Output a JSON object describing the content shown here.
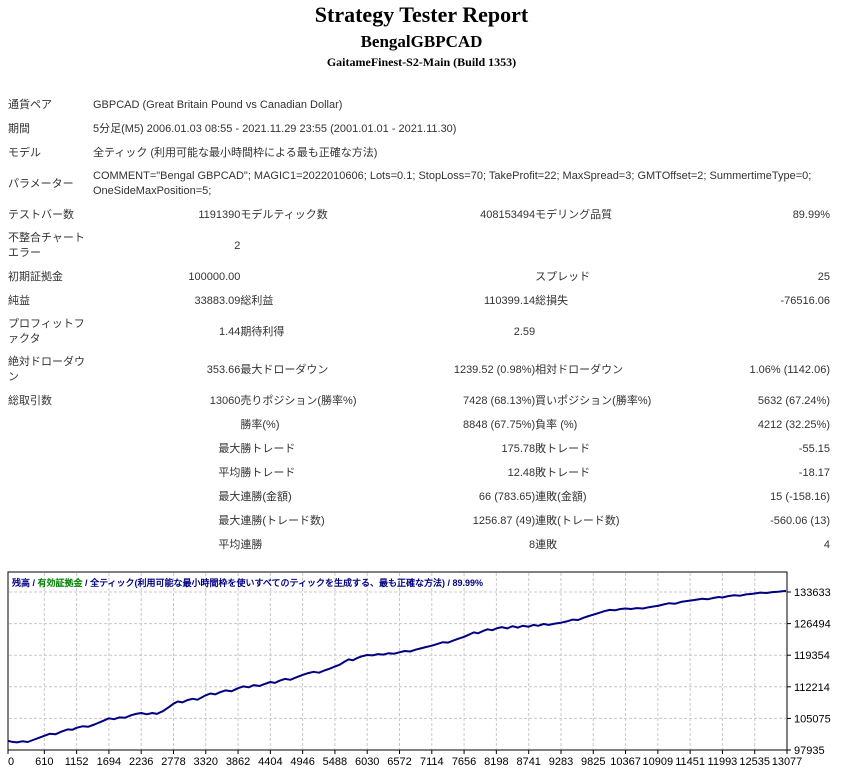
{
  "header": {
    "title": "Strategy Tester Report",
    "subtitle": "BengalGBPCAD",
    "build": "GaitameFinest-S2-Main (Build 1353)"
  },
  "table": {
    "rows": [
      {
        "l1": "通貨ペア",
        "v1": "",
        "span": "GBPCAD (Great Britain Pound vs Canadian Dollar)"
      },
      {
        "l1": "期間",
        "v1": "",
        "span": "5分足(M5) 2006.01.03 08:55 - 2021.11.29 23:55 (2001.01.01 - 2021.11.30)"
      },
      {
        "l1": "モデル",
        "v1": "",
        "span": "全ティック (利用可能な最小時間枠による最も正確な方法)"
      },
      {
        "l1": "パラメーター",
        "v1": "",
        "span": "COMMENT=\"Bengal GBPCAD\"; MAGIC1=2022010606; Lots=0.1; StopLoss=70; TakeProfit=22; MaxSpread=3; GMTOffset=2; SummertimeType=0; OneSideMaxPosition=5;"
      },
      {
        "l1": "テストバー数",
        "v1": "1191390",
        "l2": "モデルティック数",
        "v2": "408153494",
        "l3": "モデリング品質",
        "v3": "89.99%"
      },
      {
        "l1": "不整合チャートエラー",
        "v1": "2",
        "l2": "",
        "v2": "",
        "l3": "",
        "v3": ""
      },
      {
        "l1": "初期証拠金",
        "v1": "100000.00",
        "l2": "",
        "v2": "",
        "l3": "スプレッド",
        "v3": "25"
      },
      {
        "l1": "純益",
        "v1": "33883.09",
        "l2": "総利益",
        "v2": "110399.14",
        "l3": "総損失",
        "v3": "-76516.06"
      },
      {
        "l1": "プロフィットファクタ",
        "v1": "1.44",
        "l2": "期待利得",
        "v2": "2.59",
        "l3": "",
        "v3": ""
      },
      {
        "l1": "絶対ドローダウン",
        "v1": "353.66",
        "l2": "最大ドローダウン",
        "v2": "1239.52 (0.98%)",
        "l3": "相対ドローダウン",
        "v3": "1.06% (1142.06)"
      },
      {
        "l1": "総取引数",
        "v1": "13060",
        "l2": "売りポジション(勝率%)",
        "v2": "7428 (68.13%)",
        "l3": "買いポジション(勝率%)",
        "v3": "5632 (67.24%)"
      },
      {
        "l1": "",
        "v1": "",
        "l2": "勝率(%)",
        "v2": "8848 (67.75%)",
        "l3": "負率 (%)",
        "v3": "4212 (32.25%)"
      },
      {
        "l1": "",
        "v1": "最大",
        "l2": "勝トレード",
        "v2": "175.78",
        "l3": "敗トレード",
        "v3": "-55.15"
      },
      {
        "l1": "",
        "v1": "平均",
        "l2": "勝トレード",
        "v2": "12.48",
        "l3": "敗トレード",
        "v3": "-18.17"
      },
      {
        "l1": "",
        "v1": "最大",
        "l2": "連勝(金額)",
        "v2": "66 (783.65)",
        "l3": "連敗(金額)",
        "v3": "15 (-158.16)"
      },
      {
        "l1": "",
        "v1": "最大",
        "l2": "連勝(トレード数)",
        "v2": "1256.87 (49)",
        "l3": "連敗(トレード数)",
        "v3": "-560.06 (13)"
      },
      {
        "l1": "",
        "v1": "平均",
        "l2": "連勝",
        "v2": "8",
        "l3": "連敗",
        "v3": "4"
      }
    ]
  },
  "chart_data": {
    "type": "line",
    "legend": {
      "balance": "残高",
      "separator": " / ",
      "equity": "有効証拠金",
      "rest": "全ティック(利用可能な最小時間枠を使いすべてのティックを生成する、最も正確な方法) / 89.99%"
    },
    "colors": {
      "balance_line": "#000080",
      "equity_text": "#008000",
      "grid": "#c8c8c8",
      "border": "#000000"
    },
    "grid": "dashed",
    "legend_position": "top-left-inside",
    "x_ticks": [
      0,
      610,
      1152,
      1694,
      2236,
      2778,
      3320,
      3862,
      4404,
      4946,
      5488,
      6030,
      6572,
      7114,
      7656,
      8198,
      8741,
      9283,
      9825,
      10367,
      10909,
      11451,
      11993,
      12535,
      13077
    ],
    "y_ticks": [
      97935,
      105075,
      112214,
      119354,
      126494,
      133633
    ],
    "xlabel": "",
    "ylabel": "",
    "series": [
      {
        "name": "残高",
        "points": [
          [
            0,
            100000
          ],
          [
            60,
            99800
          ],
          [
            150,
            99646
          ],
          [
            240,
            99900
          ],
          [
            330,
            99750
          ],
          [
            420,
            100200
          ],
          [
            520,
            100700
          ],
          [
            610,
            101150
          ],
          [
            700,
            101600
          ],
          [
            800,
            101500
          ],
          [
            900,
            102100
          ],
          [
            1000,
            102600
          ],
          [
            1080,
            102500
          ],
          [
            1152,
            102950
          ],
          [
            1250,
            103300
          ],
          [
            1350,
            103200
          ],
          [
            1450,
            103700
          ],
          [
            1560,
            104300
          ],
          [
            1694,
            105100
          ],
          [
            1780,
            104900
          ],
          [
            1870,
            105300
          ],
          [
            1960,
            105200
          ],
          [
            2070,
            105800
          ],
          [
            2150,
            106100
          ],
          [
            2236,
            106300
          ],
          [
            2330,
            106000
          ],
          [
            2420,
            106300
          ],
          [
            2500,
            106100
          ],
          [
            2600,
            106700
          ],
          [
            2700,
            107600
          ],
          [
            2778,
            108400
          ],
          [
            2850,
            108900
          ],
          [
            2930,
            108700
          ],
          [
            3010,
            109200
          ],
          [
            3100,
            109500
          ],
          [
            3180,
            109300
          ],
          [
            3250,
            109800
          ],
          [
            3320,
            110300
          ],
          [
            3400,
            110700
          ],
          [
            3480,
            110500
          ],
          [
            3560,
            111000
          ],
          [
            3650,
            111400
          ],
          [
            3750,
            111200
          ],
          [
            3862,
            111900
          ],
          [
            3950,
            112300
          ],
          [
            4040,
            112100
          ],
          [
            4130,
            112600
          ],
          [
            4220,
            112400
          ],
          [
            4300,
            112800
          ],
          [
            4404,
            113300
          ],
          [
            4480,
            113100
          ],
          [
            4560,
            113600
          ],
          [
            4650,
            114000
          ],
          [
            4740,
            113800
          ],
          [
            4830,
            114300
          ],
          [
            4946,
            114900
          ],
          [
            5040,
            115300
          ],
          [
            5130,
            115600
          ],
          [
            5220,
            115400
          ],
          [
            5310,
            115900
          ],
          [
            5400,
            116300
          ],
          [
            5488,
            116800
          ],
          [
            5570,
            117200
          ],
          [
            5650,
            117900
          ],
          [
            5720,
            118400
          ],
          [
            5790,
            118200
          ],
          [
            5860,
            118700
          ],
          [
            5940,
            119100
          ],
          [
            6030,
            119400
          ],
          [
            6120,
            119300
          ],
          [
            6210,
            119600
          ],
          [
            6300,
            119500
          ],
          [
            6390,
            119800
          ],
          [
            6480,
            119700
          ],
          [
            6572,
            120000
          ],
          [
            6660,
            120300
          ],
          [
            6750,
            120200
          ],
          [
            6840,
            120600
          ],
          [
            6930,
            120900
          ],
          [
            7020,
            121200
          ],
          [
            7114,
            121500
          ],
          [
            7210,
            121900
          ],
          [
            7300,
            122300
          ],
          [
            7390,
            122200
          ],
          [
            7480,
            122700
          ],
          [
            7570,
            123100
          ],
          [
            7656,
            123500
          ],
          [
            7740,
            124000
          ],
          [
            7820,
            124500
          ],
          [
            7890,
            124300
          ],
          [
            7970,
            124800
          ],
          [
            8050,
            125200
          ],
          [
            8130,
            125000
          ],
          [
            8198,
            125400
          ],
          [
            8290,
            125700
          ],
          [
            8380,
            125400
          ],
          [
            8470,
            125900
          ],
          [
            8560,
            125600
          ],
          [
            8640,
            126000
          ],
          [
            8741,
            125800
          ],
          [
            8820,
            126200
          ],
          [
            8900,
            126000
          ],
          [
            8990,
            126400
          ],
          [
            9080,
            126200
          ],
          [
            9180,
            126500
          ],
          [
            9283,
            126700
          ],
          [
            9380,
            127000
          ],
          [
            9480,
            127400
          ],
          [
            9570,
            127300
          ],
          [
            9660,
            127800
          ],
          [
            9750,
            128200
          ],
          [
            9825,
            128500
          ],
          [
            9920,
            128900
          ],
          [
            10010,
            129300
          ],
          [
            10100,
            129600
          ],
          [
            10190,
            129500
          ],
          [
            10280,
            129800
          ],
          [
            10367,
            129900
          ],
          [
            10460,
            129800
          ],
          [
            10560,
            130000
          ],
          [
            10660,
            129900
          ],
          [
            10760,
            130200
          ],
          [
            10860,
            130400
          ],
          [
            10909,
            130500
          ],
          [
            11000,
            130800
          ],
          [
            11100,
            131100
          ],
          [
            11200,
            131000
          ],
          [
            11300,
            131400
          ],
          [
            11400,
            131600
          ],
          [
            11451,
            131700
          ],
          [
            11550,
            131900
          ],
          [
            11650,
            132100
          ],
          [
            11750,
            132000
          ],
          [
            11850,
            132300
          ],
          [
            11930,
            132500
          ],
          [
            11993,
            132400
          ],
          [
            12090,
            132700
          ],
          [
            12190,
            132900
          ],
          [
            12290,
            132800
          ],
          [
            12390,
            133100
          ],
          [
            12490,
            133200
          ],
          [
            12535,
            133300
          ],
          [
            12630,
            133500
          ],
          [
            12730,
            133400
          ],
          [
            12830,
            133600
          ],
          [
            12930,
            133700
          ],
          [
            13000,
            133800
          ],
          [
            13060,
            133883
          ]
        ]
      }
    ]
  }
}
